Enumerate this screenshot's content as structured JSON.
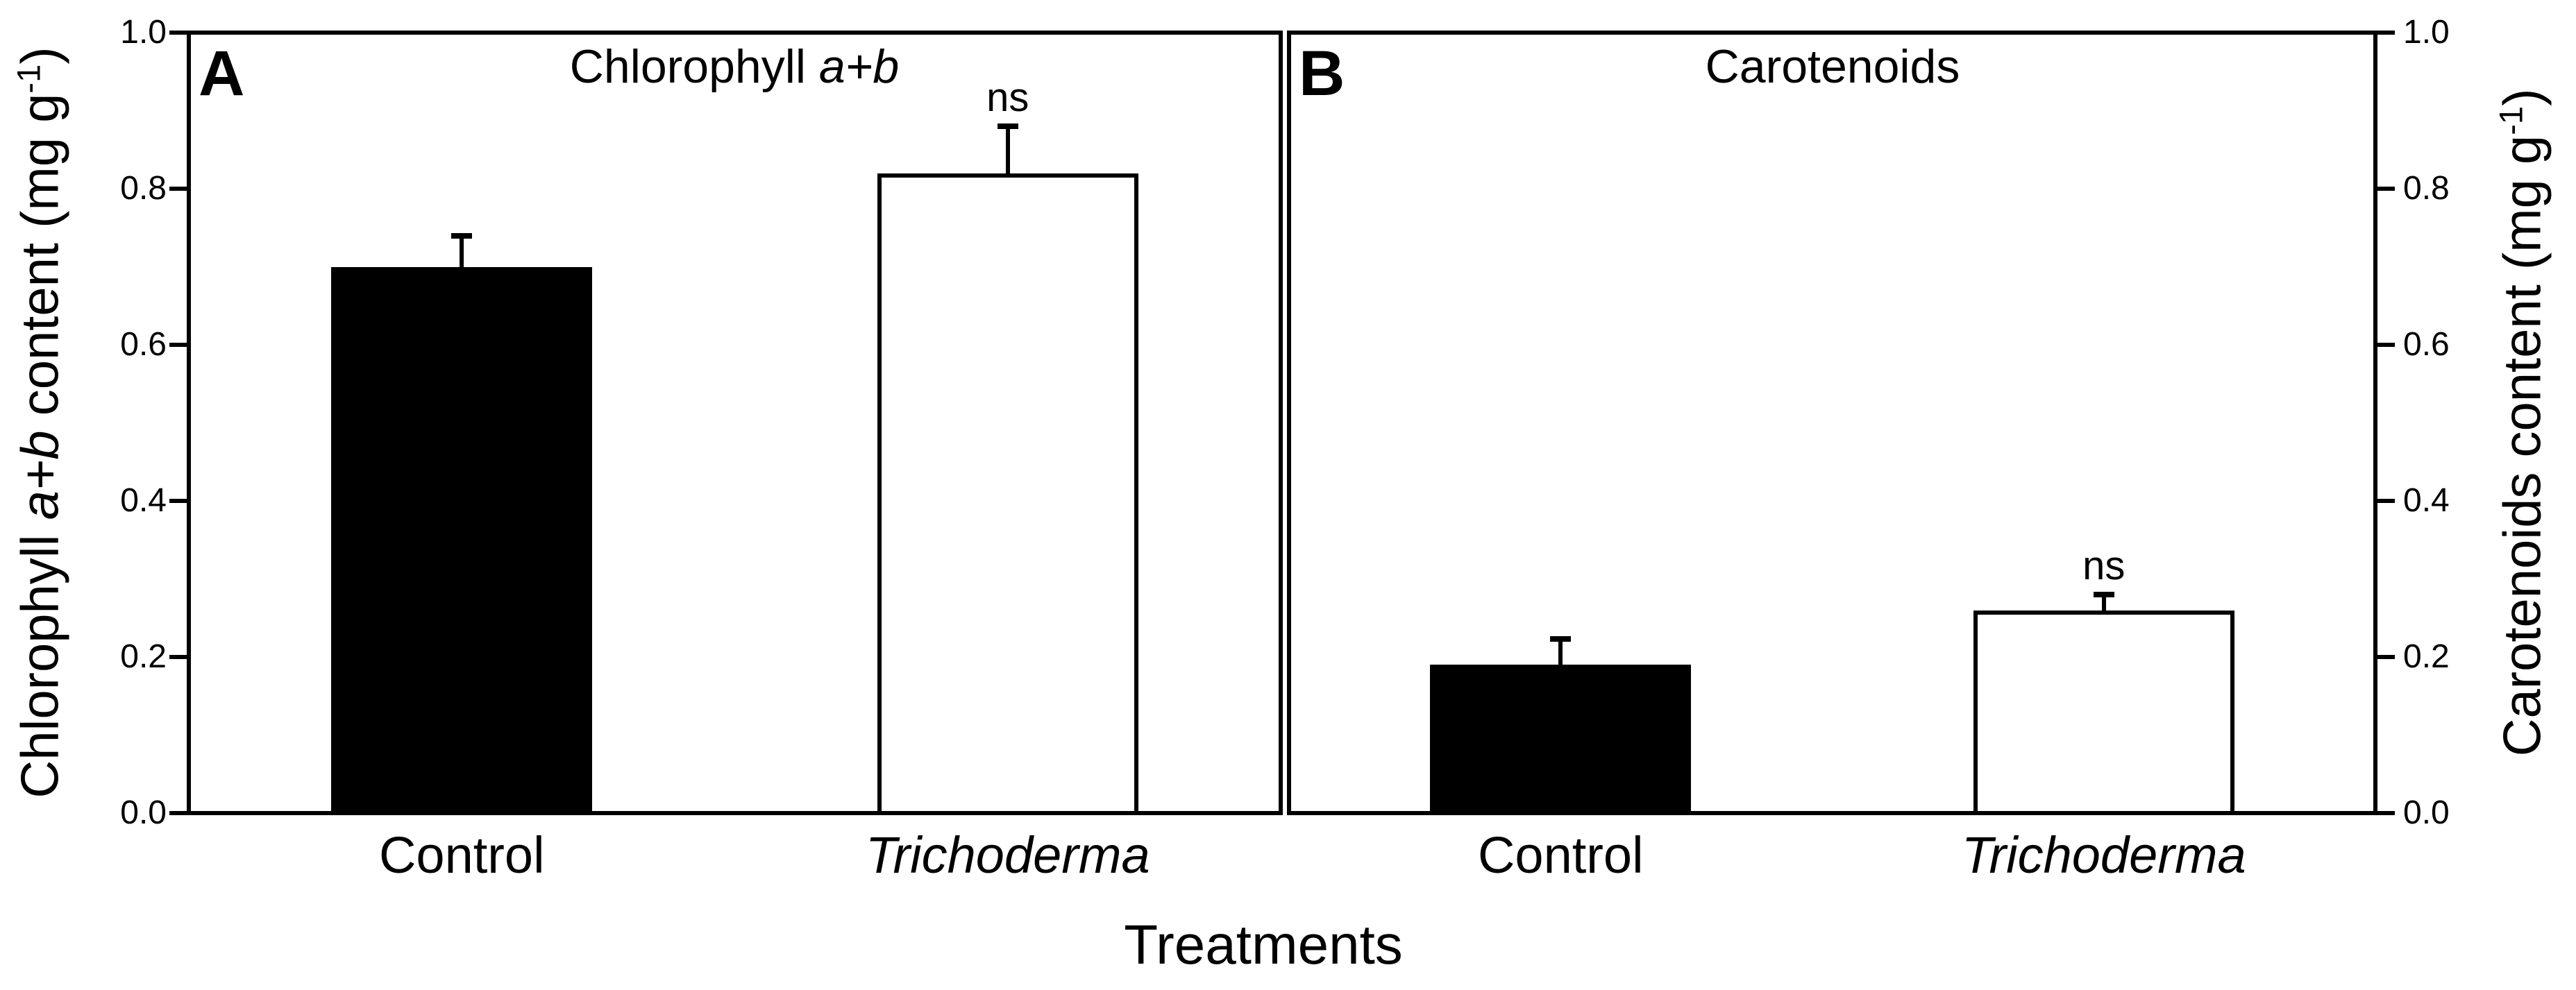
{
  "chart_data": {
    "type": "bar",
    "xlabel": "Treatments",
    "ylim": [
      0.0,
      1.0
    ],
    "yticks": [
      "0.0",
      "0.2",
      "0.4",
      "0.6",
      "0.8",
      "1.0"
    ],
    "grid": false,
    "categories": [
      "Control",
      "Trichoderma"
    ],
    "significance_note": "ns",
    "colors": {
      "filled_bar": "#000000",
      "open_bar": "#ffffff",
      "axis": "#000000"
    },
    "panels": [
      {
        "letter": "A",
        "title_parts": [
          {
            "t": "Chlorophyll "
          },
          {
            "t": "a+b",
            "i": true
          }
        ],
        "ylabel_side": "left",
        "ylabel_parts": [
          {
            "t": "Chlorophyll "
          },
          {
            "t": "a+b",
            "i": true
          },
          {
            "t": " content (mg g"
          },
          {
            "t": "-1",
            "sup": true
          },
          {
            "t": ")"
          }
        ],
        "series": [
          {
            "category": "Control",
            "italic": false,
            "value": 0.7,
            "error": 0.04,
            "fill": "#000000",
            "sig": ""
          },
          {
            "category": "Trichoderma",
            "italic": true,
            "value": 0.82,
            "error": 0.06,
            "fill": "#ffffff",
            "sig": "ns"
          }
        ]
      },
      {
        "letter": "B",
        "title_parts": [
          {
            "t": "Carotenoids"
          }
        ],
        "ylabel_side": "right",
        "ylabel_parts": [
          {
            "t": "Carotenoids content (mg g"
          },
          {
            "t": "-1",
            "sup": true
          },
          {
            "t": ")"
          }
        ],
        "series": [
          {
            "category": "Control",
            "italic": false,
            "value": 0.19,
            "error": 0.033,
            "fill": "#000000",
            "sig": ""
          },
          {
            "category": "Trichoderma",
            "italic": true,
            "value": 0.26,
            "error": 0.02,
            "fill": "#ffffff",
            "sig": "ns"
          }
        ]
      }
    ]
  }
}
